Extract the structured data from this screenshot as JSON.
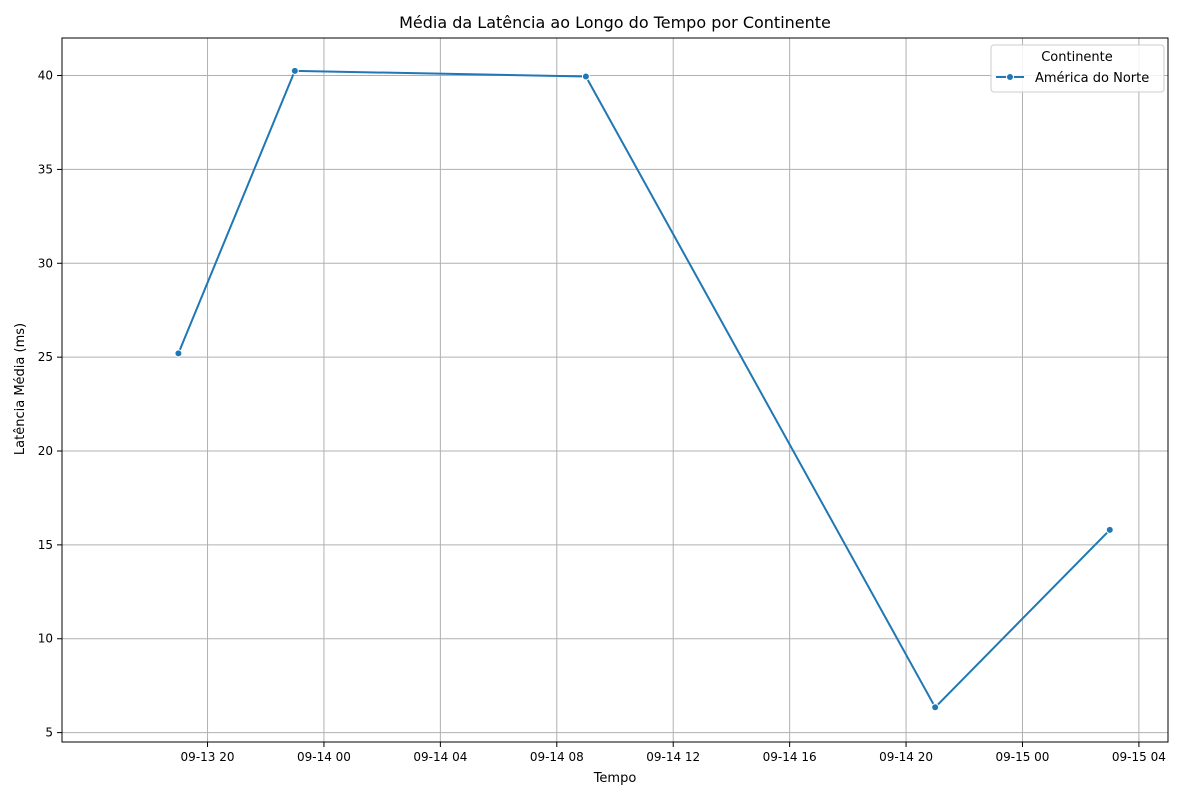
{
  "chart_data": {
    "type": "line",
    "title": "Média da Latência ao Longo do Tempo por Continente",
    "xlabel": "Tempo",
    "ylabel": "Latência Média (ms)",
    "x_ticks": [
      {
        "t": "2024-09-13T20:00",
        "label": "09-13 20"
      },
      {
        "t": "2024-09-14T00:00",
        "label": "09-14 00"
      },
      {
        "t": "2024-09-14T04:00",
        "label": "09-14 04"
      },
      {
        "t": "2024-09-14T08:00",
        "label": "09-14 08"
      },
      {
        "t": "2024-09-14T12:00",
        "label": "09-14 12"
      },
      {
        "t": "2024-09-14T16:00",
        "label": "09-14 16"
      },
      {
        "t": "2024-09-14T20:00",
        "label": "09-14 20"
      },
      {
        "t": "2024-09-15T00:00",
        "label": "09-15 00"
      },
      {
        "t": "2024-09-15T04:00",
        "label": "09-15 04"
      }
    ],
    "xlim": [
      "2024-09-13T15:00",
      "2024-09-15T05:00"
    ],
    "y_ticks": [
      5,
      10,
      15,
      20,
      25,
      30,
      35,
      40
    ],
    "ylim": [
      4.5,
      42
    ],
    "grid": true,
    "legend": {
      "title": "Continente",
      "placement": "top-right"
    },
    "series": [
      {
        "name": "América do Norte",
        "color": "#1f77b4",
        "points": [
          {
            "x": "2024-09-13T19:00",
            "y": 25.2
          },
          {
            "x": "2024-09-13T23:00",
            "y": 40.25
          },
          {
            "x": "2024-09-14T09:00",
            "y": 39.95
          },
          {
            "x": "2024-09-14T21:00",
            "y": 6.35
          },
          {
            "x": "2024-09-15T03:00",
            "y": 15.8
          }
        ]
      }
    ]
  }
}
